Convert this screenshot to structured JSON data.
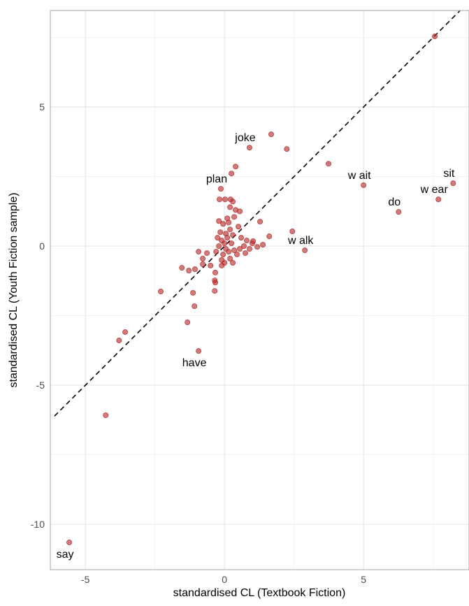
{
  "chart_data": {
    "type": "scatter",
    "xlabel": "standardised CL (Textbook Fiction)",
    "ylabel": "standardised CL (Youth Fiction sample)",
    "xlim": [
      -6.26,
      8.79
    ],
    "ylim": [
      -11.63,
      8.47
    ],
    "xticks": [
      -5,
      0,
      5
    ],
    "yticks": [
      -10,
      -5,
      0,
      5
    ],
    "grid": true,
    "color": "#b22222",
    "series": [
      {
        "x": [
          -5.58,
          -4.27,
          -3.79,
          -3.57,
          -2.29,
          -1.33,
          -1.08,
          -1.13,
          -0.93,
          -1.53,
          -1.28,
          -1.06,
          -0.78,
          -0.5,
          -0.35,
          -0.33,
          -0.35,
          -0.33,
          -0.93,
          -0.78,
          -0.63,
          -0.13,
          -0.18,
          0.02,
          0.22,
          0.3,
          0.25,
          0.4,
          1.68,
          0.9,
          2.24,
          3.74,
          5.0,
          6.26,
          7.69,
          8.22,
          7.56,
          2.89,
          2.44,
          1.61,
          1.28,
          1.38,
          1.18,
          1.03,
          -0.1,
          0,
          0.05,
          -0.05,
          0.1,
          -0.15,
          0.2,
          -0.1,
          0,
          0.15,
          -0.2,
          0.25,
          0.3,
          -0.05,
          0.1,
          0.35,
          0.5,
          0.6,
          0.7,
          0.55,
          0.45,
          0.35,
          0.8,
          0.9,
          1.0,
          0.75,
          -0.3,
          -0.25,
          0.05,
          -0.1,
          0.2,
          0.4,
          0.2,
          0.55,
          0.15,
          -0.2,
          0.3
        ],
        "y": [
          -10.65,
          -6.08,
          -3.39,
          -3.09,
          -1.63,
          -2.74,
          -2.16,
          -1.68,
          -3.77,
          -0.78,
          -0.88,
          -0.83,
          -0.65,
          -0.7,
          -1.23,
          -1.31,
          -1.61,
          -0.95,
          -0.2,
          -0.45,
          -0.25,
          2.06,
          1.68,
          1.68,
          1.68,
          1.6,
          2.61,
          2.86,
          4.02,
          3.54,
          3.49,
          2.96,
          2.19,
          1.23,
          1.68,
          2.26,
          7.54,
          -0.15,
          0.53,
          0.35,
          0.88,
          0.05,
          -0.03,
          0.18,
          0.2,
          0.1,
          -0.1,
          -0.3,
          0.3,
          0.5,
          0.6,
          -0.5,
          -0.6,
          -0.2,
          0,
          0.1,
          0.4,
          0.8,
          1.0,
          1.05,
          0.7,
          0.3,
          0,
          -0.1,
          -0.3,
          -0.15,
          0.2,
          -0.1,
          0.1,
          -0.25,
          -0.2,
          0.3,
          0.45,
          -0.7,
          -0.45,
          1.3,
          1.4,
          1.25,
          0.85,
          0.9,
          -0.6
        ],
        "labels": [
          "say",
          null,
          null,
          null,
          null,
          null,
          null,
          null,
          "have",
          null,
          null,
          null,
          null,
          null,
          null,
          null,
          null,
          null,
          null,
          null,
          null,
          "plan",
          null,
          null,
          null,
          null,
          null,
          null,
          null,
          "joke",
          null,
          null,
          "w ait",
          "do",
          "w ear",
          "sit",
          null,
          "w alk",
          null,
          null,
          null,
          null,
          null,
          null,
          null,
          null,
          null,
          null,
          null,
          null,
          null,
          null,
          null,
          null,
          null,
          null,
          null,
          null,
          null,
          null,
          null,
          null,
          null,
          null,
          null,
          null,
          null,
          null,
          null,
          null,
          null,
          null,
          null,
          null,
          null,
          null,
          null,
          null,
          null,
          null,
          null
        ]
      }
    ]
  }
}
